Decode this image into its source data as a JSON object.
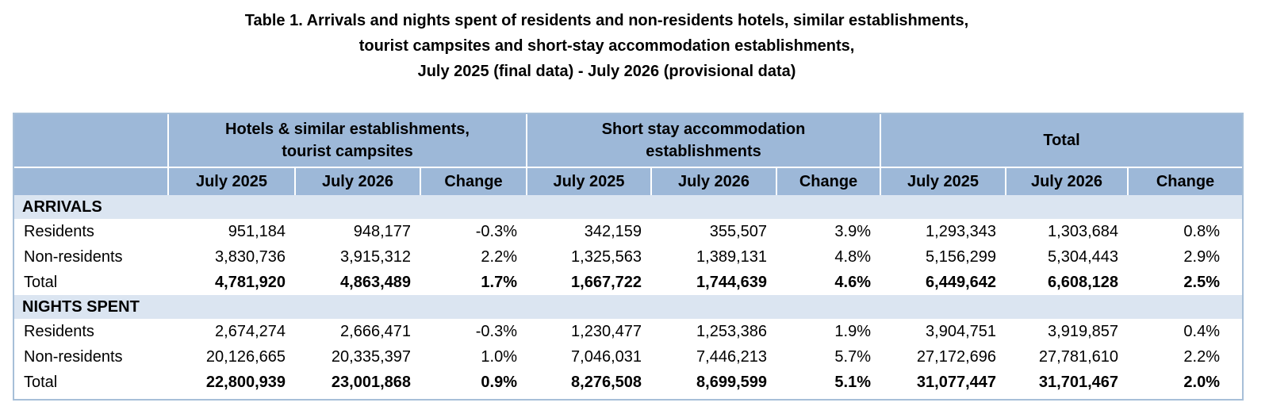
{
  "title": {
    "line1": "Table 1. Arrivals and nights spent of residents and non-residents hotels, similar establishments,",
    "line2": "tourist campsites and short-stay accommodation establishments,",
    "line3": "July 2025 (final data) - July 2026 (provisional data)"
  },
  "table": {
    "groups": [
      {
        "line1": "Hotels & similar establishments,",
        "line2": "tourist campsites"
      },
      {
        "line1": "Short stay accommodation",
        "line2": "establishments"
      },
      {
        "line1": "Total",
        "line2": ""
      }
    ],
    "subheaders": [
      "July 2025",
      "July 2026",
      "Change",
      "July 2025",
      "July 2026",
      "Change",
      "July 2025",
      "July 2026",
      "Change"
    ],
    "sections": [
      {
        "title": "ARRIVALS",
        "rows": [
          {
            "label": "Residents",
            "values": [
              "951,184",
              "948,177",
              "-0.3%",
              "342,159",
              "355,507",
              "3.9%",
              "1,293,343",
              "1,303,684",
              "0.8%"
            ]
          },
          {
            "label": "Non-residents",
            "values": [
              "3,830,736",
              "3,915,312",
              "2.2%",
              "1,325,563",
              "1,389,131",
              "4.8%",
              "5,156,299",
              "5,304,443",
              "2.9%"
            ]
          },
          {
            "label": "Total",
            "values": [
              "4,781,920",
              "4,863,489",
              "1.7%",
              "1,667,722",
              "1,744,639",
              "4.6%",
              "6,449,642",
              "6,608,128",
              "2.5%"
            ]
          }
        ]
      },
      {
        "title": "NIGHTS SPENT",
        "rows": [
          {
            "label": "Residents",
            "values": [
              "2,674,274",
              "2,666,471",
              "-0.3%",
              "1,230,477",
              "1,253,386",
              "1.9%",
              "3,904,751",
              "3,919,857",
              "0.4%"
            ]
          },
          {
            "label": "Non-residents",
            "values": [
              "20,126,665",
              "20,335,397",
              "1.0%",
              "7,046,031",
              "7,446,213",
              "5.7%",
              "27,172,696",
              "27,781,610",
              "2.2%"
            ]
          },
          {
            "label": "Total",
            "values": [
              "22,800,939",
              "23,001,868",
              "0.9%",
              "8,276,508",
              "8,699,599",
              "5.1%",
              "31,077,447",
              "31,701,467",
              "2.0%"
            ]
          }
        ]
      }
    ]
  }
}
